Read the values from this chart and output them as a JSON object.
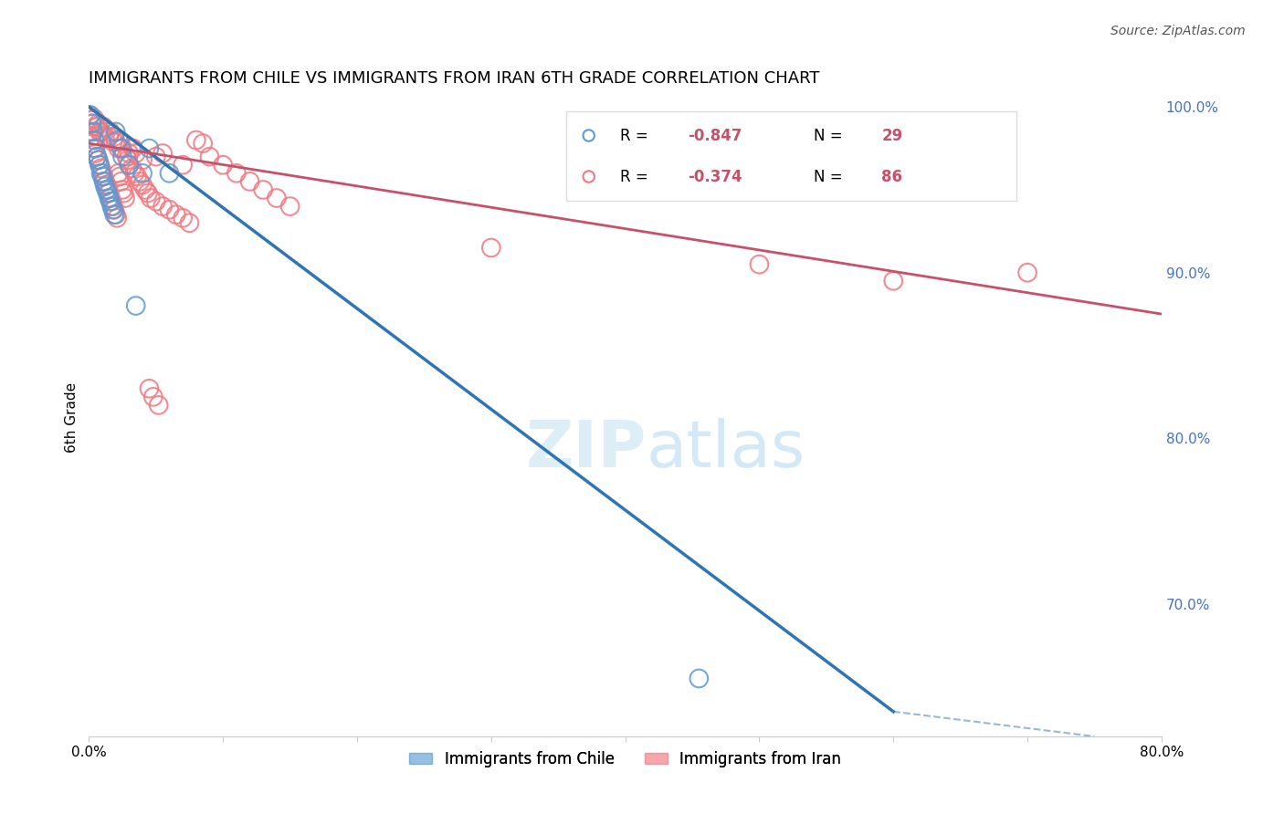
{
  "title": "IMMIGRANTS FROM CHILE VS IMMIGRANTS FROM IRAN 6TH GRADE CORRELATION CHART",
  "source": "Source: ZipAtlas.com",
  "xlabel_bottom": "",
  "ylabel_left": "6th Grade",
  "watermark": "ZIPatlas",
  "legend_chile": "Immigrants from Chile",
  "legend_iran": "Immigrants from Iran",
  "chile_R": -0.847,
  "chile_N": 29,
  "iran_R": -0.374,
  "iran_N": 86,
  "xlim": [
    0.0,
    0.8
  ],
  "ylim": [
    0.62,
    1.005
  ],
  "right_yticks": [
    0.7,
    0.8,
    0.9,
    1.0
  ],
  "right_yticklabels": [
    "70.0%",
    "80.0%",
    "90.0%",
    "100.0%"
  ],
  "xticks": [
    0.0,
    0.1,
    0.2,
    0.3,
    0.4,
    0.5,
    0.6,
    0.7,
    0.8
  ],
  "xticklabels": [
    "0.0%",
    "",
    "",
    "",
    "",
    "",
    "",
    "",
    "80.0%"
  ],
  "color_chile": "#5b9bd5",
  "color_iran": "#f4777f",
  "color_chile_line": "#2e75b6",
  "color_iran_line": "#c9506a",
  "chile_scatter_x": [
    0.002,
    0.003,
    0.004,
    0.005,
    0.006,
    0.007,
    0.008,
    0.009,
    0.01,
    0.011,
    0.012,
    0.013,
    0.014,
    0.015,
    0.016,
    0.017,
    0.018,
    0.019,
    0.02,
    0.022,
    0.024,
    0.025,
    0.03,
    0.035,
    0.04,
    0.045,
    0.06,
    0.455,
    0.001
  ],
  "chile_scatter_y": [
    0.99,
    0.985,
    0.98,
    0.975,
    0.97,
    0.968,
    0.965,
    0.96,
    0.958,
    0.955,
    0.952,
    0.95,
    0.948,
    0.945,
    0.943,
    0.94,
    0.938,
    0.935,
    0.985,
    0.98,
    0.975,
    0.97,
    0.965,
    0.88,
    0.96,
    0.975,
    0.96,
    0.655,
    0.995
  ],
  "iran_scatter_x": [
    0.001,
    0.002,
    0.003,
    0.004,
    0.005,
    0.006,
    0.007,
    0.008,
    0.009,
    0.01,
    0.011,
    0.012,
    0.013,
    0.014,
    0.015,
    0.016,
    0.017,
    0.018,
    0.019,
    0.02,
    0.021,
    0.022,
    0.023,
    0.024,
    0.025,
    0.026,
    0.027,
    0.028,
    0.029,
    0.03,
    0.032,
    0.034,
    0.036,
    0.038,
    0.04,
    0.042,
    0.044,
    0.046,
    0.05,
    0.055,
    0.06,
    0.065,
    0.07,
    0.075,
    0.08,
    0.085,
    0.09,
    0.1,
    0.11,
    0.12,
    0.13,
    0.14,
    0.15,
    0.005,
    0.008,
    0.012,
    0.02,
    0.025,
    0.03,
    0.04,
    0.002,
    0.003,
    0.006,
    0.009,
    0.015,
    0.018,
    0.022,
    0.035,
    0.05,
    0.07,
    0.001,
    0.004,
    0.007,
    0.011,
    0.016,
    0.019,
    0.023,
    0.033,
    0.055,
    0.3,
    0.7,
    0.6,
    0.5,
    0.045,
    0.048,
    0.052
  ],
  "iran_scatter_y": [
    0.985,
    0.982,
    0.978,
    0.975,
    0.972,
    0.97,
    0.968,
    0.965,
    0.963,
    0.96,
    0.958,
    0.955,
    0.953,
    0.95,
    0.948,
    0.945,
    0.943,
    0.94,
    0.938,
    0.935,
    0.933,
    0.96,
    0.958,
    0.955,
    0.95,
    0.948,
    0.945,
    0.97,
    0.968,
    0.965,
    0.963,
    0.96,
    0.958,
    0.955,
    0.953,
    0.95,
    0.948,
    0.945,
    0.943,
    0.94,
    0.938,
    0.935,
    0.933,
    0.93,
    0.98,
    0.978,
    0.97,
    0.965,
    0.96,
    0.955,
    0.95,
    0.945,
    0.94,
    0.988,
    0.985,
    0.982,
    0.979,
    0.975,
    0.972,
    0.968,
    0.992,
    0.99,
    0.988,
    0.985,
    0.982,
    0.979,
    0.975,
    0.972,
    0.97,
    0.965,
    0.995,
    0.993,
    0.99,
    0.988,
    0.985,
    0.982,
    0.979,
    0.975,
    0.972,
    0.915,
    0.9,
    0.895,
    0.905,
    0.83,
    0.825,
    0.82
  ],
  "blue_line_x0": 0.0,
  "blue_line_y0": 1.0,
  "blue_line_x1": 0.6,
  "blue_line_y1": 0.635,
  "pink_line_x0": 0.0,
  "pink_line_y0": 0.978,
  "pink_line_x1": 0.8,
  "pink_line_y1": 0.875,
  "dashed_line_x0": 0.6,
  "dashed_line_y0": 0.635,
  "dashed_line_x1": 0.75,
  "dashed_line_y1": 0.62,
  "grid_color": "#cccccc",
  "background_color": "#ffffff"
}
